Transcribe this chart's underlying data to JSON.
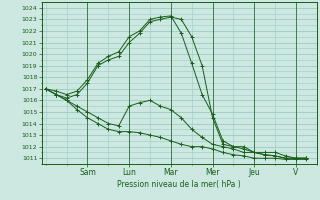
{
  "background_color": "#cce8e0",
  "grid_color": "#99ccc4",
  "line_color": "#1a5c1a",
  "title": "Pression niveau de la mer( hPa )",
  "ylim": [
    1010.5,
    1024.5
  ],
  "yticks": [
    1011,
    1012,
    1013,
    1014,
    1015,
    1016,
    1017,
    1018,
    1019,
    1020,
    1021,
    1022,
    1023,
    1024
  ],
  "day_labels": [
    "Sam",
    "Lun",
    "Mar",
    "Mer",
    "Jeu",
    "V"
  ],
  "day_positions": [
    2,
    4,
    6,
    8,
    10,
    12
  ],
  "xlim": [
    -0.2,
    13.0
  ],
  "s1_x": [
    0,
    0.5,
    1,
    1.5,
    2,
    2.5,
    3,
    3.5,
    4,
    4.5,
    5,
    5.5,
    6,
    6.5,
    7,
    7.5,
    8,
    8.5,
    9,
    9.5,
    10,
    10.5,
    11,
    11.5,
    12,
    12.5
  ],
  "s1_y": [
    1017.0,
    1016.5,
    1016.2,
    1016.5,
    1017.5,
    1019.0,
    1019.5,
    1019.8,
    1021.0,
    1021.8,
    1022.8,
    1023.0,
    1023.2,
    1023.0,
    1021.5,
    1019.0,
    1014.5,
    1012.2,
    1012.0,
    1012.0,
    1011.5,
    1011.5,
    1011.5,
    1011.2,
    1011.0,
    1011.0
  ],
  "s2_x": [
    0,
    0.5,
    1,
    1.5,
    2,
    2.5,
    3,
    3.5,
    4,
    4.5,
    5,
    5.5,
    6,
    6.5,
    7,
    7.5,
    8,
    8.5,
    9,
    9.5,
    10,
    10.5,
    11,
    11.5,
    12,
    12.5
  ],
  "s2_y": [
    1017.0,
    1016.8,
    1016.5,
    1016.8,
    1017.8,
    1019.2,
    1019.8,
    1020.2,
    1021.5,
    1022.0,
    1023.0,
    1023.2,
    1023.3,
    1021.8,
    1019.2,
    1016.5,
    1014.8,
    1012.5,
    1012.0,
    1011.8,
    1011.5,
    1011.3,
    1011.2,
    1011.0,
    1011.0,
    1011.0
  ],
  "s3_x": [
    0,
    0.5,
    1,
    1.5,
    2,
    2.5,
    3,
    3.5,
    4,
    4.5,
    5,
    5.5,
    6,
    6.5,
    7,
    7.5,
    8,
    8.5,
    9,
    9.5,
    10,
    10.5,
    11,
    11.5,
    12,
    12.5
  ],
  "s3_y": [
    1017.0,
    1016.5,
    1016.0,
    1015.5,
    1015.0,
    1014.5,
    1014.0,
    1013.8,
    1015.5,
    1015.8,
    1016.0,
    1015.5,
    1015.2,
    1014.5,
    1013.5,
    1012.8,
    1012.2,
    1012.0,
    1011.8,
    1011.5,
    1011.5,
    1011.3,
    1011.2,
    1011.0,
    1011.0,
    1011.0
  ],
  "s4_x": [
    0,
    0.5,
    1,
    1.5,
    2,
    2.5,
    3,
    3.5,
    4,
    4.5,
    5,
    5.5,
    6,
    6.5,
    7,
    7.5,
    8,
    8.5,
    9,
    9.5,
    10,
    10.5,
    11,
    11.5,
    12,
    12.5
  ],
  "s4_y": [
    1017.0,
    1016.5,
    1016.0,
    1015.2,
    1014.5,
    1014.0,
    1013.5,
    1013.3,
    1013.3,
    1013.2,
    1013.0,
    1012.8,
    1012.5,
    1012.2,
    1012.0,
    1012.0,
    1011.8,
    1011.5,
    1011.3,
    1011.2,
    1011.0,
    1011.0,
    1011.0,
    1010.9,
    1010.9,
    1010.9
  ]
}
